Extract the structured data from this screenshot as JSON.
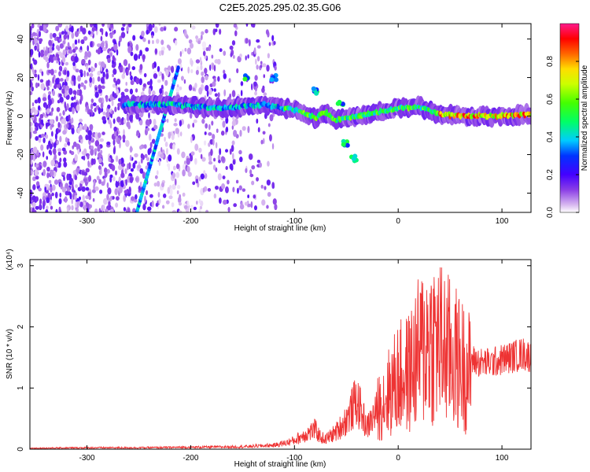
{
  "title": "C2E5.2025.295.02.35.G06",
  "chart_data": [
    {
      "type": "heatmap",
      "name": "spectrogram",
      "xlabel": "Height of straight line (km)",
      "ylabel": "Frequency (Hz)",
      "xlim": [
        -355,
        128
      ],
      "ylim": [
        -50,
        48
      ],
      "xticks": [
        -300,
        -200,
        -100,
        0,
        100
      ],
      "yticks": [
        -40,
        -20,
        0,
        20,
        40
      ],
      "grid": false,
      "colorbar": {
        "label": "Normalized spectral amplitude",
        "range": [
          0,
          1
        ],
        "ticks": [
          "0.0",
          "0.2",
          "0.4",
          "0.6",
          "0.8"
        ],
        "colormap": "rainbow (purple→blue→cyan→green→yellow→red→pink)"
      },
      "features": [
        {
          "name": "noise-region",
          "x_range": [
            -355,
            -118
          ],
          "y_range": [
            -50,
            48
          ],
          "amplitude": [
            0.0,
            0.2
          ]
        },
        {
          "name": "diagonal-streak",
          "x_start": -252,
          "y_start": -50,
          "x_end": -212,
          "y_end": 25,
          "amplitude": 0.35
        },
        {
          "name": "main-band",
          "points": [
            [
              -265,
              6
            ],
            [
              -220,
              6
            ],
            [
              -200,
              5
            ],
            [
              -170,
              4
            ],
            [
              -150,
              5
            ],
            [
              -130,
              6
            ],
            [
              -110,
              4
            ],
            [
              -95,
              3
            ],
            [
              -80,
              -1
            ],
            [
              -70,
              2
            ],
            [
              -60,
              -2
            ],
            [
              -40,
              0
            ],
            [
              -20,
              2
            ],
            [
              0,
              4
            ],
            [
              20,
              5
            ],
            [
              40,
              1
            ],
            [
              60,
              0
            ],
            [
              80,
              0
            ],
            [
              100,
              0
            ],
            [
              128,
              1
            ]
          ]
        },
        {
          "name": "upper-blobs",
          "points": [
            [
              -145,
              20
            ],
            [
              -120,
              20
            ],
            [
              -80,
              13
            ],
            [
              -55,
              6
            ]
          ]
        },
        {
          "name": "lower-blobs",
          "points": [
            [
              -50,
              -14
            ],
            [
              -42,
              -22
            ]
          ]
        }
      ]
    },
    {
      "type": "line",
      "name": "snr",
      "xlabel": "Height of straight line (km)",
      "ylabel": "SNR (10 * v/v)",
      "multiplier": "(x10⁴)",
      "xlim": [
        -355,
        128
      ],
      "ylim": [
        0,
        3.1
      ],
      "xticks": [
        -300,
        -200,
        -100,
        0,
        100
      ],
      "yticks": [
        0,
        1,
        2,
        3
      ],
      "color": "#ee3333",
      "series": [
        {
          "name": "SNR",
          "x": [
            -355,
            -300,
            -250,
            -200,
            -150,
            -120,
            -110,
            -100,
            -90,
            -80,
            -75,
            -70,
            -60,
            -50,
            -40,
            -30,
            -20,
            -10,
            0,
            10,
            20,
            30,
            40,
            50,
            60,
            70,
            80,
            90,
            100,
            110,
            120,
            128
          ],
          "y": [
            0.02,
            0.03,
            0.03,
            0.04,
            0.05,
            0.08,
            0.12,
            0.18,
            0.3,
            0.4,
            0.25,
            0.2,
            0.35,
            0.6,
            1.0,
            0.45,
            0.8,
            1.1,
            1.4,
            1.5,
            1.9,
            2.2,
            2.1,
            1.9,
            1.7,
            1.5,
            1.45,
            1.45,
            1.5,
            1.55,
            1.6,
            1.55
          ]
        }
      ]
    }
  ]
}
